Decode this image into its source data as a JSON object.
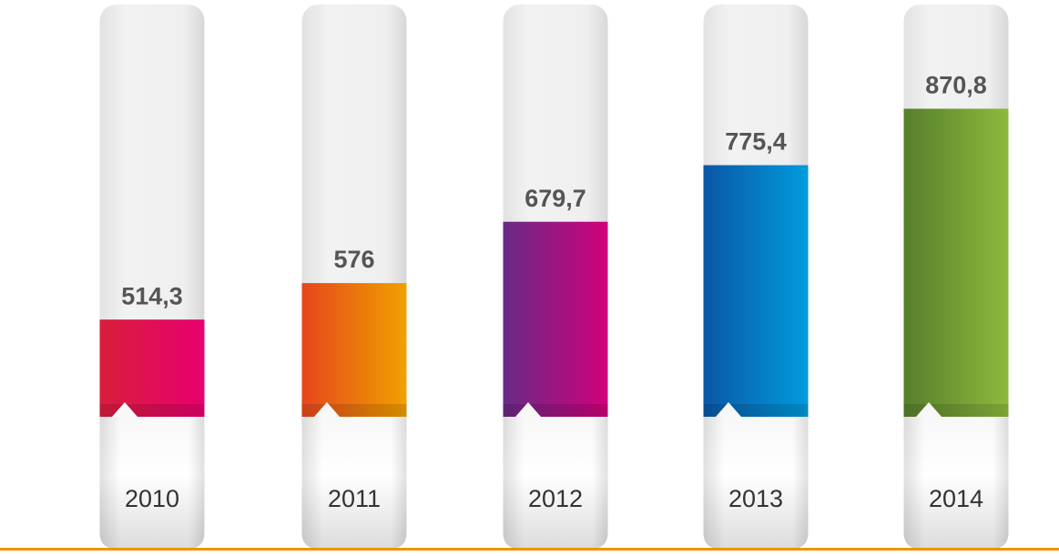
{
  "chart_data": {
    "type": "bar",
    "categories": [
      "2010",
      "2011",
      "2012",
      "2013",
      "2014"
    ],
    "values": [
      514.3,
      576,
      679.7,
      775.4,
      870.8
    ],
    "value_labels": [
      "514,3",
      "576",
      "679,7",
      "775,4",
      "870,8"
    ],
    "colors": [
      [
        "#d81e3a",
        "#e8006f"
      ],
      [
        "#e6461c",
        "#f0a100"
      ],
      [
        "#672b86",
        "#d1007b"
      ],
      [
        "#0b57a6",
        "#009bdc"
      ],
      [
        "#577f2c",
        "#8cba3d"
      ]
    ],
    "ylim": [
      350,
      950
    ],
    "baseline_color": "#f39200"
  }
}
